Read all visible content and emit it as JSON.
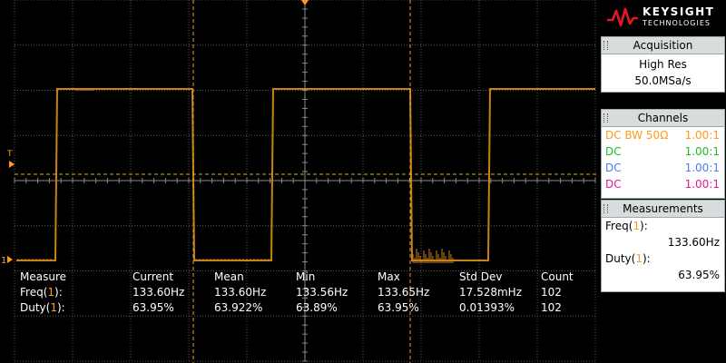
{
  "side_panel": {
    "brand": "KEYSIGHT",
    "brand_sub": "TECHNOLOGIES",
    "acquisition": {
      "title": "Acquisition",
      "mode": "High Res",
      "rate": "50.0MSa/s"
    },
    "channels": {
      "title": "Channels",
      "rows": [
        {
          "coupling": "DC BW 50Ω",
          "probe": "1.00:1",
          "color": "#ff9a1e"
        },
        {
          "coupling": "DC",
          "probe": "1.00:1",
          "color": "#22bb22"
        },
        {
          "coupling": "DC",
          "probe": "1.00:1",
          "color": "#4d7df0"
        },
        {
          "coupling": "DC",
          "probe": "1.00:1",
          "color": "#e0189a"
        }
      ]
    },
    "measurements": {
      "title": "Measurements",
      "freq_label": "Freq(1):",
      "freq_value": "133.60Hz",
      "duty_label": "Duty(1):",
      "duty_value": "63.95%"
    }
  },
  "measure_table": {
    "headers": [
      "Measure",
      "Current",
      "Mean",
      "Min",
      "Max",
      "Std Dev",
      "Count"
    ],
    "rows": [
      [
        "Freq(1):",
        "133.60Hz",
        "133.60Hz",
        "133.56Hz",
        "133.65Hz",
        "17.528mHz",
        "102"
      ],
      [
        "Duty(1):",
        "63.95%",
        "63.922%",
        "63.89%",
        "63.95%",
        "0.01393%",
        "102"
      ]
    ]
  },
  "markers": {
    "trigger_level_label": "T",
    "channel_ground_label": "1"
  },
  "colors": {
    "trace": "#c88218",
    "channel1": "#ff9a1e",
    "cursor": "#e8a030"
  }
}
